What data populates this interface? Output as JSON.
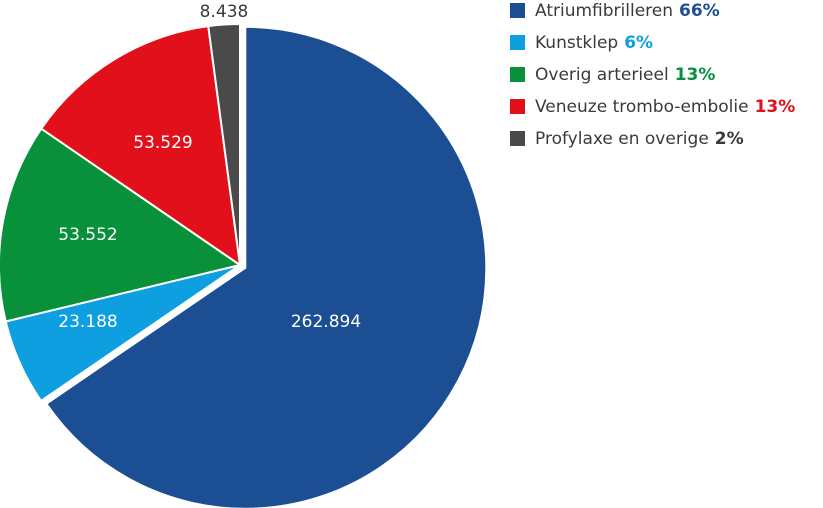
{
  "chart_data": {
    "type": "pie",
    "slices": [
      {
        "label": "Atriumfibrilleren",
        "value": 262894,
        "display": "262.894",
        "percent": "66%",
        "color": "#1c4e93",
        "label_color": "#ffffff"
      },
      {
        "label": "Kunstklep",
        "value": 23188,
        "display": "23.188",
        "percent": "6%",
        "color": "#0e9fe0",
        "label_color": "#ffffff"
      },
      {
        "label": "Overig arterieel",
        "value": 53552,
        "display": "53.552",
        "percent": "13%",
        "color": "#08913a",
        "label_color": "#ffffff"
      },
      {
        "label": "Veneuze trombo-embolie",
        "value": 53529,
        "display": "53.529",
        "percent": "13%",
        "color": "#e2101a",
        "label_color": "#ffffff"
      },
      {
        "label": "Profylaxe en overige",
        "value": 8438,
        "display": "8.438",
        "percent": "2%",
        "color": "#4a4a4a",
        "label_color": "#3a3a3a"
      }
    ],
    "exploded_slice": "Atriumfibrilleren",
    "legend_position": "top-right"
  }
}
